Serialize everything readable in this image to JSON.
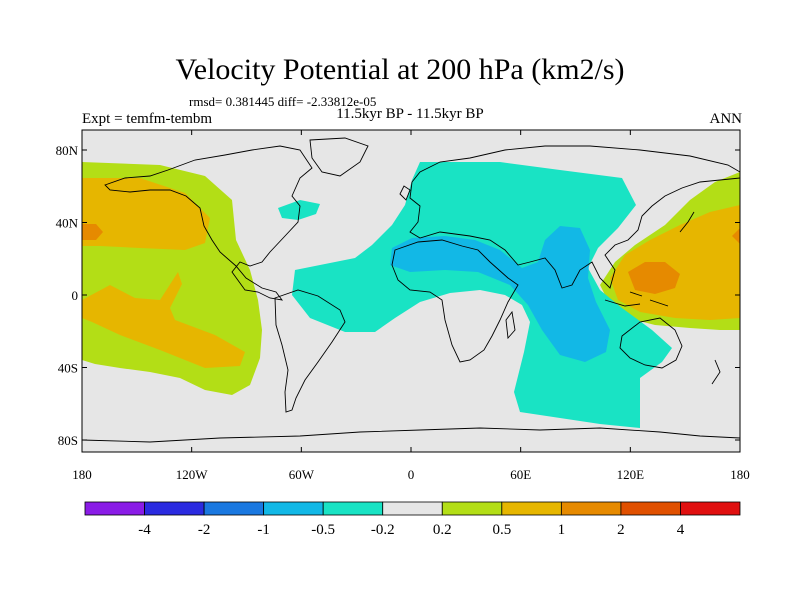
{
  "title": "Velocity Potential at 200 hPa (km2/s)",
  "stats": "rmsd= 0.381445 diff= -2.33812e-05",
  "left_label": "Expt = temfm-tembm",
  "center_label": "11.5kyr BP - 11.5kyr BP",
  "right_label": "ANN",
  "lat_ticks": [
    {
      "label": "80N",
      "value": 80
    },
    {
      "label": "40N",
      "value": 40
    },
    {
      "label": "0",
      "value": 0
    },
    {
      "label": "40S",
      "value": -40
    },
    {
      "label": "80S",
      "value": -80
    }
  ],
  "lon_ticks": [
    {
      "label": "180",
      "value": -180
    },
    {
      "label": "120W",
      "value": -120
    },
    {
      "label": "60W",
      "value": -60
    },
    {
      "label": "0",
      "value": 0
    },
    {
      "label": "60E",
      "value": 60
    },
    {
      "label": "120E",
      "value": 120
    },
    {
      "label": "180",
      "value": 180
    }
  ],
  "colorbar": {
    "colors": [
      "#8a1ce6",
      "#2b2be0",
      "#1a78e0",
      "#12b8e6",
      "#19e3c4",
      "#e6e6e6",
      "#b3de16",
      "#e6b600",
      "#e68a00",
      "#e05000",
      "#e01010"
    ],
    "labels": [
      "-4",
      "-2",
      "-1",
      "-0.5",
      "-0.2",
      "0.2",
      "0.5",
      "1",
      "2",
      "4"
    ]
  },
  "colors": {
    "background": "#e6e6e6",
    "level_neg_0_2": "#19e3c4",
    "level_neg_0_5": "#12b8e6",
    "level_pos_0_2": "#b3de16",
    "level_pos_0_5": "#e6b600",
    "level_pos_1": "#e68a00"
  }
}
